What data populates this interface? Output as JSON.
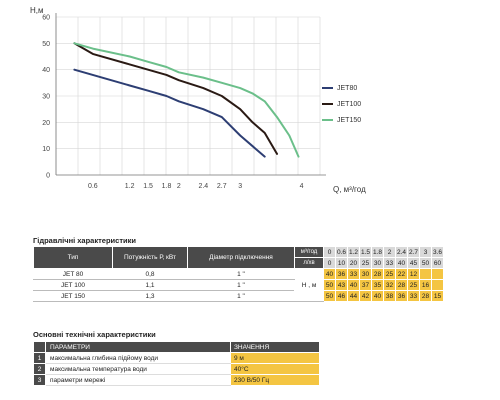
{
  "chart_data": {
    "type": "line",
    "ylabel": "Н,м",
    "xlabel": "Q, м³/год",
    "x_ticks": [
      0.6,
      1.2,
      1.5,
      1.8,
      2,
      2.4,
      2.7,
      3,
      4
    ],
    "x_tick_labels": [
      "0.6",
      "1.2",
      "1.5",
      "1.8",
      "2",
      "2.4",
      "2.7",
      "3",
      "4"
    ],
    "y_ticks": [
      0,
      10,
      20,
      30,
      40,
      50,
      60
    ],
    "ylim": [
      0,
      60
    ],
    "grid": true,
    "legend_position": "right",
    "series": [
      {
        "name": "JET80",
        "color": "#2d3e73",
        "points": [
          [
            0.3,
            40
          ],
          [
            0.6,
            38
          ],
          [
            1.2,
            34
          ],
          [
            1.5,
            32
          ],
          [
            1.8,
            30
          ],
          [
            2,
            28
          ],
          [
            2.4,
            25
          ],
          [
            2.7,
            22
          ],
          [
            3,
            15
          ],
          [
            3.4,
            7
          ]
        ]
      },
      {
        "name": "JET100",
        "color": "#2a1a14",
        "points": [
          [
            0.3,
            50
          ],
          [
            0.6,
            46
          ],
          [
            1.2,
            42
          ],
          [
            1.5,
            40
          ],
          [
            1.8,
            38
          ],
          [
            2,
            36
          ],
          [
            2.4,
            33
          ],
          [
            2.7,
            30
          ],
          [
            3,
            25
          ],
          [
            3.2,
            20
          ],
          [
            3.4,
            16
          ],
          [
            3.6,
            8
          ]
        ]
      },
      {
        "name": "JET150",
        "color": "#6bbf8a",
        "points": [
          [
            0.3,
            50
          ],
          [
            0.6,
            48
          ],
          [
            1.2,
            45
          ],
          [
            1.5,
            43
          ],
          [
            1.8,
            41
          ],
          [
            2,
            39
          ],
          [
            2.4,
            37
          ],
          [
            2.7,
            35
          ],
          [
            3,
            33
          ],
          [
            3.2,
            31
          ],
          [
            3.4,
            28
          ],
          [
            3.6,
            22
          ],
          [
            3.8,
            15
          ],
          [
            3.95,
            7
          ]
        ]
      }
    ]
  },
  "hydraulic": {
    "title": "Гідравлічні характеристики",
    "headers": {
      "type": "Тип",
      "power": "Потужність   Р, кВт",
      "diameter": "Діаметр підключення",
      "unit_q": "м³/год",
      "unit_lmin": "л/хв",
      "h_unit": "Н , м"
    },
    "q_values": [
      "0",
      "0.6",
      "1.2",
      "1.5",
      "1.8",
      "2",
      "2.4",
      "2.7",
      "3",
      "3.6"
    ],
    "lmin_values": [
      "0",
      "10",
      "20",
      "25",
      "30",
      "33",
      "40",
      "45",
      "50",
      "60"
    ],
    "rows": [
      {
        "model": "JET 80",
        "power": "0,8",
        "diameter": "1 \"",
        "h": [
          "40",
          "36",
          "33",
          "30",
          "28",
          "25",
          "22",
          "12",
          "",
          ""
        ]
      },
      {
        "model": "JET 100",
        "power": "1,1",
        "diameter": "1 \"",
        "h": [
          "50",
          "43",
          "40",
          "37",
          "35",
          "32",
          "28",
          "25",
          "16",
          ""
        ]
      },
      {
        "model": "JET 150",
        "power": "1,3",
        "diameter": "1 \"",
        "h": [
          "50",
          "46",
          "44",
          "42",
          "40",
          "38",
          "36",
          "33",
          "28",
          "15"
        ]
      }
    ]
  },
  "specs": {
    "title": "Основні технічні характеристики",
    "col_param": "ПАРАМЕТРИ",
    "col_value": "ЗНАЧЕННЯ",
    "rows": [
      {
        "n": "1",
        "param": "максимальна глибина підйому води",
        "value": "9 м"
      },
      {
        "n": "2",
        "param": "максимальна температура води",
        "value": "40°С"
      },
      {
        "n": "3",
        "param": "параметри мережі",
        "value": "230 В/50 Гц"
      }
    ]
  }
}
